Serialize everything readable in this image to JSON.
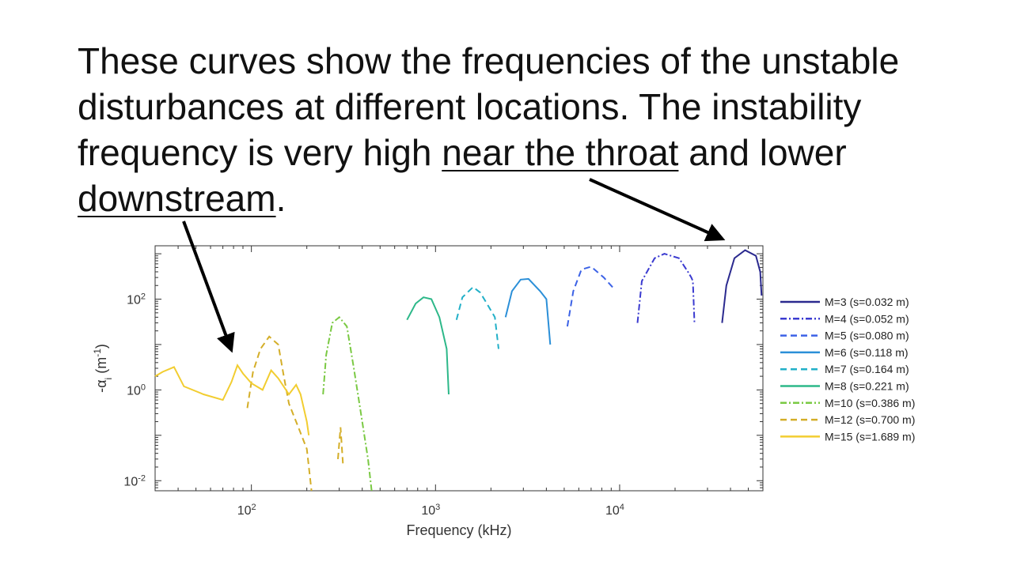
{
  "slide": {
    "part1": "These curves show the frequencies of the unstable disturbances at different locations. The instability frequency is very high ",
    "link1": "near the throat",
    "part2": " and lower ",
    "link2": "downstream",
    "part3": "."
  },
  "colors": {
    "M3": "#2b2a8f",
    "M4": "#3b3bd0",
    "M5": "#3c62e6",
    "M6": "#2b8fd8",
    "M7": "#22b0c8",
    "M8": "#2db889",
    "M10": "#7ac943",
    "M12": "#d4ae28",
    "M15": "#f2cd30"
  },
  "chart_data": {
    "type": "line",
    "xlabel": "Frequency (kHz)",
    "ylabel": "-αi (m-1)",
    "x_scale": "log",
    "y_scale": "log",
    "xlim": [
      30,
      60000
    ],
    "ylim": [
      0.006,
      1500
    ],
    "x_ticks": [
      {
        "value": 100,
        "base": "10",
        "exp": "2"
      },
      {
        "value": 1000,
        "base": "10",
        "exp": "3"
      },
      {
        "value": 10000,
        "base": "10",
        "exp": "4"
      }
    ],
    "y_ticks": [
      {
        "value": 0.01,
        "base": "10",
        "exp": "-2"
      },
      {
        "value": 1,
        "base": "10",
        "exp": "0"
      },
      {
        "value": 100,
        "base": "10",
        "exp": "2"
      }
    ],
    "legend_position": "right",
    "series": [
      {
        "name": "M=3 (s=0.032 m)",
        "color_key": "M3",
        "dash": "solid",
        "points": [
          [
            36000,
            30
          ],
          [
            38000,
            200
          ],
          [
            42000,
            800
          ],
          [
            48000,
            1200
          ],
          [
            55000,
            900
          ],
          [
            58000,
            400
          ],
          [
            59000,
            120
          ]
        ]
      },
      {
        "name": "M=4 (s=0.052 m)",
        "color_key": "M4",
        "dash": "dashdot",
        "points": [
          [
            12500,
            30
          ],
          [
            13200,
            250
          ],
          [
            15500,
            800
          ],
          [
            17500,
            1000
          ],
          [
            21000,
            800
          ],
          [
            23500,
            400
          ],
          [
            24500,
            300
          ],
          [
            25000,
            250
          ],
          [
            25500,
            30
          ]
        ]
      },
      {
        "name": "M=5 (s=0.080 m)",
        "color_key": "M5",
        "dash": "dashed",
        "points": [
          [
            5200,
            25
          ],
          [
            5600,
            150
          ],
          [
            6200,
            450
          ],
          [
            7000,
            520
          ],
          [
            8200,
            300
          ],
          [
            9200,
            180
          ],
          [
            9500,
            200
          ]
        ]
      },
      {
        "name": "M=6 (s=0.118 m)",
        "color_key": "M6",
        "dash": "solid",
        "points": [
          [
            2400,
            40
          ],
          [
            2600,
            150
          ],
          [
            2900,
            270
          ],
          [
            3200,
            280
          ],
          [
            3700,
            150
          ],
          [
            4000,
            100
          ],
          [
            4200,
            10
          ]
        ]
      },
      {
        "name": "M=7 (s=0.164 m)",
        "color_key": "M7",
        "dash": "dashed",
        "points": [
          [
            1300,
            35
          ],
          [
            1400,
            110
          ],
          [
            1600,
            185
          ],
          [
            1750,
            140
          ],
          [
            1900,
            80
          ],
          [
            2100,
            40
          ],
          [
            2200,
            8
          ]
        ]
      },
      {
        "name": "M=8 (s=0.221 m)",
        "color_key": "M8",
        "dash": "solid",
        "points": [
          [
            700,
            35
          ],
          [
            780,
            80
          ],
          [
            860,
            110
          ],
          [
            950,
            100
          ],
          [
            1050,
            40
          ],
          [
            1150,
            8
          ],
          [
            1180,
            0.8
          ]
        ]
      },
      {
        "name": "M=10 (s=0.386 m)",
        "color_key": "M10",
        "dash": "dashdot",
        "points": [
          [
            245,
            0.8
          ],
          [
            255,
            6
          ],
          [
            275,
            30
          ],
          [
            300,
            40
          ],
          [
            330,
            25
          ],
          [
            360,
            3
          ],
          [
            400,
            0.2
          ],
          [
            430,
            0.03
          ],
          [
            450,
            0.006
          ]
        ]
      },
      {
        "name": "M=12 (s=0.700 m)",
        "color_key": "M12",
        "dash": "dashed",
        "points": [
          [
            95,
            0.4
          ],
          [
            102,
            2.5
          ],
          [
            112,
            8
          ],
          [
            125,
            15
          ],
          [
            140,
            10
          ],
          [
            150,
            2
          ],
          [
            160,
            0.5
          ],
          [
            180,
            0.15
          ],
          [
            200,
            0.05
          ],
          [
            212,
            0.006
          ]
        ]
      },
      {
        "name": "M=15 (s=1.689 m)",
        "color_key": "M15",
        "dash": "solid",
        "points": [
          [
            30,
            2
          ],
          [
            33,
            2.5
          ],
          [
            38,
            3.2
          ],
          [
            43,
            1.2
          ],
          [
            55,
            0.8
          ],
          [
            70,
            0.6
          ],
          [
            78,
            1.5
          ],
          [
            84,
            3.5
          ],
          [
            90,
            2.3
          ],
          [
            100,
            1.4
          ],
          [
            115,
            1.0
          ],
          [
            128,
            2.7
          ],
          [
            140,
            1.8
          ],
          [
            160,
            0.8
          ],
          [
            175,
            1.3
          ],
          [
            185,
            0.8
          ],
          [
            200,
            0.2
          ],
          [
            205,
            0.1
          ]
        ]
      },
      {
        "name": "",
        "color_key": "M12",
        "dash": "dashed",
        "points": [
          [
            295,
            0.03
          ],
          [
            305,
            0.15
          ],
          [
            315,
            0.02
          ]
        ]
      }
    ]
  }
}
